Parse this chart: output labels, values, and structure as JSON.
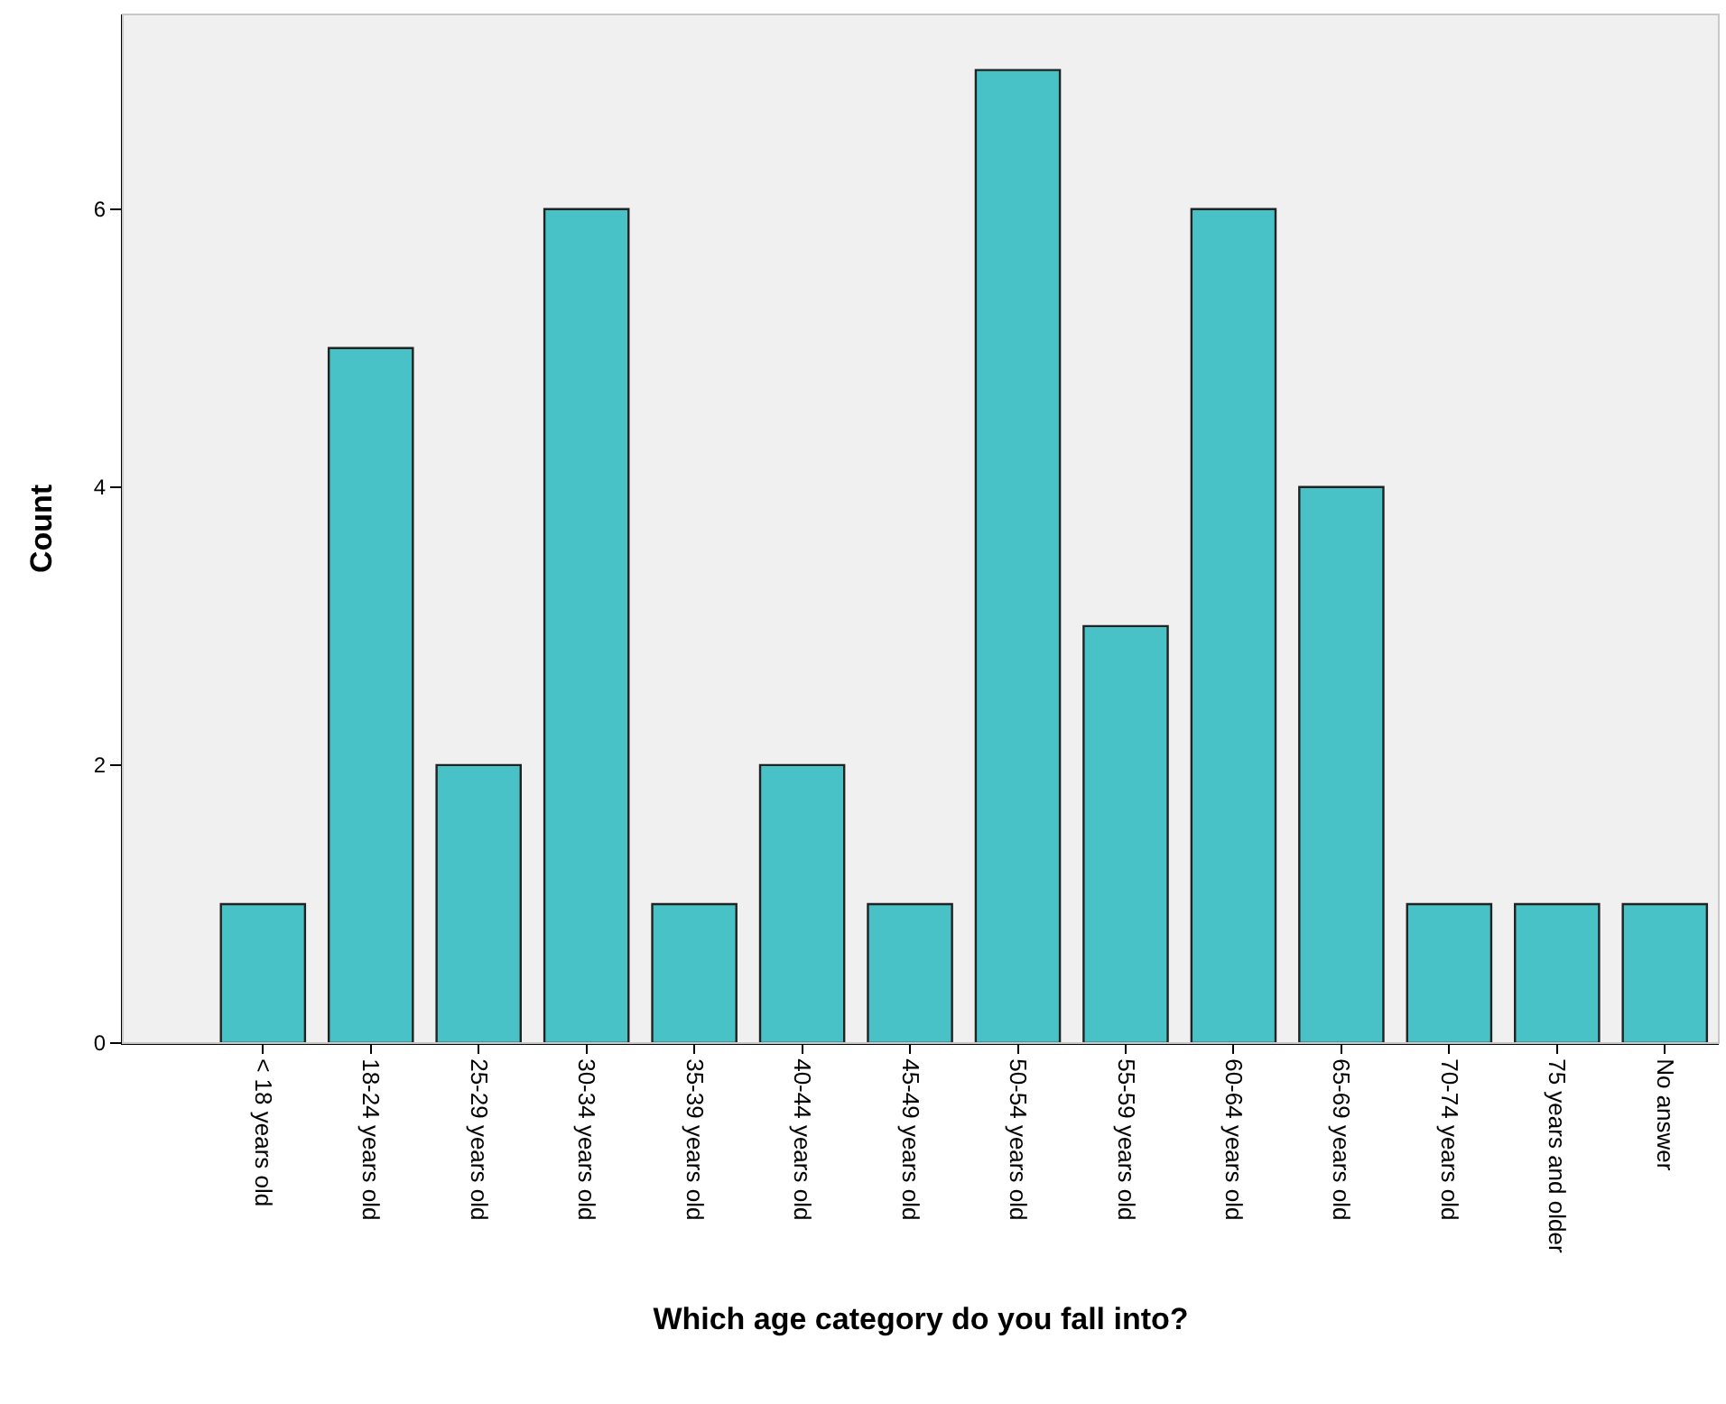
{
  "chart_data": {
    "type": "bar",
    "xlabel": "Which age category do you fall into?",
    "ylabel": "Count",
    "categories": [
      "< 18 years old",
      "18-24 years old",
      "25-29 years old",
      "30-34 years old",
      "35-39 years old",
      "40-44 years old",
      "45-49 years old",
      "50-54 years old",
      "55-59 years old",
      "60-64 years old",
      "65-69 years old",
      "70-74 years old",
      "75 years and older",
      "No answer"
    ],
    "values": [
      1,
      5,
      2,
      6,
      1,
      2,
      1,
      7,
      3,
      6,
      4,
      1,
      1,
      1
    ],
    "color": "#48c1c7",
    "ylim": [
      0,
      7.4
    ],
    "yticks": [
      0,
      2,
      4,
      6
    ],
    "grid": false,
    "legend": false
  }
}
